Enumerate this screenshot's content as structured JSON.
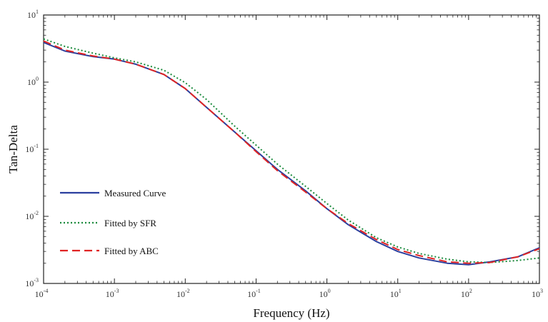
{
  "chart_data": {
    "type": "line",
    "xlabel": "Frequency (Hz)",
    "ylabel": "Tan-Delta",
    "xscale": "log",
    "yscale": "log",
    "xlim": [
      0.0001,
      1000
    ],
    "ylim": [
      0.001,
      10
    ],
    "x_ticks": [
      {
        "base": "10",
        "exp": "-4"
      },
      {
        "base": "10",
        "exp": "-3"
      },
      {
        "base": "10",
        "exp": "-2"
      },
      {
        "base": "10",
        "exp": "-1"
      },
      {
        "base": "10",
        "exp": "0"
      },
      {
        "base": "10",
        "exp": "1"
      },
      {
        "base": "10",
        "exp": "2"
      },
      {
        "base": "10",
        "exp": "3"
      }
    ],
    "y_ticks": [
      {
        "base": "10",
        "exp": "-3"
      },
      {
        "base": "10",
        "exp": "-2"
      },
      {
        "base": "10",
        "exp": "-1"
      },
      {
        "base": "10",
        "exp": "0"
      },
      {
        "base": "10",
        "exp": "1"
      }
    ],
    "legend_position": "lower-left",
    "grid": false,
    "series": [
      {
        "name": "Measured Curve",
        "color": "#2b3f9e",
        "style": "solid",
        "x": [
          0.0001,
          0.0002,
          0.0005,
          0.001,
          0.002,
          0.005,
          0.01,
          0.02,
          0.05,
          0.1,
          0.2,
          0.5,
          1,
          2,
          5,
          10,
          20,
          50,
          100,
          200,
          500,
          1000
        ],
        "y": [
          3.9,
          2.9,
          2.4,
          2.2,
          1.85,
          1.3,
          0.8,
          0.42,
          0.18,
          0.095,
          0.05,
          0.024,
          0.013,
          0.0075,
          0.0042,
          0.003,
          0.0024,
          0.002,
          0.0019,
          0.0021,
          0.0025,
          0.0034
        ]
      },
      {
        "name": "Fitted by SFR",
        "color": "#1a8a3c",
        "style": "dotted",
        "x": [
          0.0001,
          0.0002,
          0.0005,
          0.001,
          0.002,
          0.005,
          0.01,
          0.02,
          0.05,
          0.1,
          0.2,
          0.5,
          1,
          2,
          5,
          10,
          20,
          50,
          100,
          200,
          500,
          1000
        ],
        "y": [
          4.4,
          3.4,
          2.7,
          2.3,
          2.0,
          1.5,
          0.98,
          0.55,
          0.22,
          0.115,
          0.06,
          0.028,
          0.0155,
          0.0088,
          0.0048,
          0.0035,
          0.0028,
          0.0023,
          0.0021,
          0.00205,
          0.0022,
          0.0024
        ]
      },
      {
        "name": "Fitted by ABC",
        "color": "#e02424",
        "style": "dashed",
        "x": [
          0.0001,
          0.0002,
          0.0005,
          0.001,
          0.002,
          0.005,
          0.01,
          0.02,
          0.05,
          0.1,
          0.2,
          0.5,
          1,
          2,
          5,
          10,
          20,
          50,
          100,
          200,
          500,
          1000
        ],
        "y": [
          4.1,
          3.0,
          2.45,
          2.2,
          1.85,
          1.3,
          0.8,
          0.42,
          0.18,
          0.092,
          0.048,
          0.023,
          0.013,
          0.0078,
          0.0045,
          0.0032,
          0.0026,
          0.0021,
          0.002,
          0.00205,
          0.0025,
          0.0033
        ]
      }
    ]
  }
}
